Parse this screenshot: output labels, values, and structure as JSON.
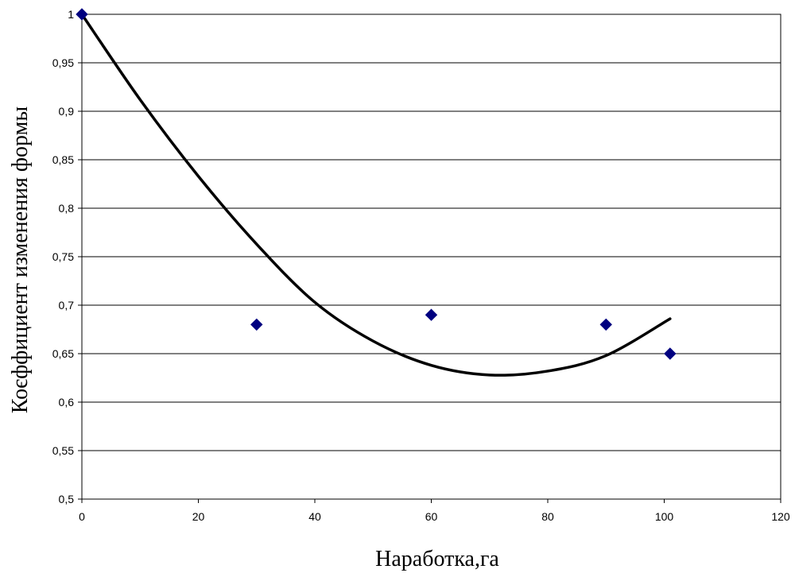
{
  "chart_data": {
    "type": "scatter",
    "title": "",
    "xlabel": "Наработка,га",
    "ylabel": "Коєффициент изменения формы",
    "xlim": [
      0,
      120
    ],
    "ylim": [
      0.5,
      1
    ],
    "x_ticks": [
      0,
      20,
      40,
      60,
      80,
      100,
      120
    ],
    "x_tick_labels": [
      "0",
      "20",
      "40",
      "60",
      "80",
      "100",
      "120"
    ],
    "y_ticks": [
      0.5,
      0.55,
      0.6,
      0.65,
      0.7,
      0.75,
      0.8,
      0.85,
      0.9,
      0.95,
      1
    ],
    "y_tick_labels": [
      "0,5",
      "0,55",
      "0,6",
      "0,65",
      "0,7",
      "0,75",
      "0,8",
      "0,85",
      "0,9",
      "0,95",
      "1"
    ],
    "grid": "horizontal",
    "legend": "none",
    "series": [
      {
        "type": "scatter",
        "marker": "diamond",
        "color": "#000080",
        "points": [
          {
            "x": 0,
            "y": 1.0
          },
          {
            "x": 30,
            "y": 0.68
          },
          {
            "x": 60,
            "y": 0.69
          },
          {
            "x": 90,
            "y": 0.68
          },
          {
            "x": 101,
            "y": 0.65
          }
        ]
      },
      {
        "type": "line",
        "role": "trendline",
        "color": "#000000",
        "points": [
          {
            "x": 0,
            "y": 1.0
          },
          {
            "x": 10,
            "y": 0.912
          },
          {
            "x": 20,
            "y": 0.833
          },
          {
            "x": 30,
            "y": 0.763
          },
          {
            "x": 40,
            "y": 0.703
          },
          {
            "x": 50,
            "y": 0.663
          },
          {
            "x": 60,
            "y": 0.638
          },
          {
            "x": 70,
            "y": 0.628
          },
          {
            "x": 80,
            "y": 0.632
          },
          {
            "x": 90,
            "y": 0.648
          },
          {
            "x": 101,
            "y": 0.686
          }
        ]
      }
    ]
  }
}
